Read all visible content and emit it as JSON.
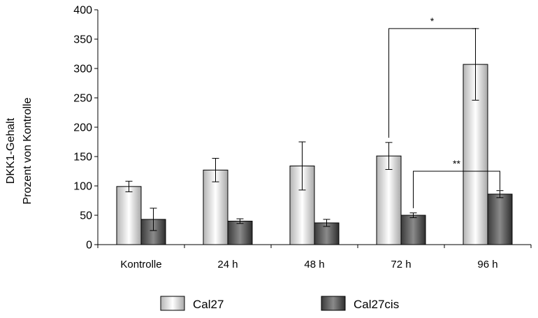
{
  "chart_data": {
    "type": "bar",
    "categories": [
      "Kontrolle",
      "24 h",
      "48 h",
      "72 h",
      "96 h"
    ],
    "series": [
      {
        "name": "Cal27",
        "values": [
          99,
          127,
          134,
          151,
          307
        ],
        "errors": [
          9,
          20,
          41,
          23,
          61
        ],
        "color": "#dcdcdc"
      },
      {
        "name": "Cal27cis",
        "values": [
          43,
          40,
          37,
          50,
          86
        ],
        "errors": [
          19,
          4,
          6,
          4,
          6
        ],
        "color": "#5a5a5a"
      }
    ],
    "ylim": [
      0,
      400
    ],
    "yticks": [
      0,
      50,
      100,
      150,
      200,
      250,
      300,
      350,
      400
    ],
    "ylabel_line1": "DKK1-Gehalt",
    "ylabel_line2": "Prozent von Kontrolle",
    "xlabel": "",
    "title": "",
    "grid": false,
    "legend_position": "bottom",
    "annotations": [
      {
        "label": "*",
        "from": {
          "series": 0,
          "category": 3
        },
        "to": {
          "series": 0,
          "category": 4
        },
        "y": 368
      },
      {
        "label": "**",
        "from": {
          "series": 1,
          "category": 3
        },
        "to": {
          "series": 1,
          "category": 4
        },
        "y": 125
      }
    ]
  }
}
